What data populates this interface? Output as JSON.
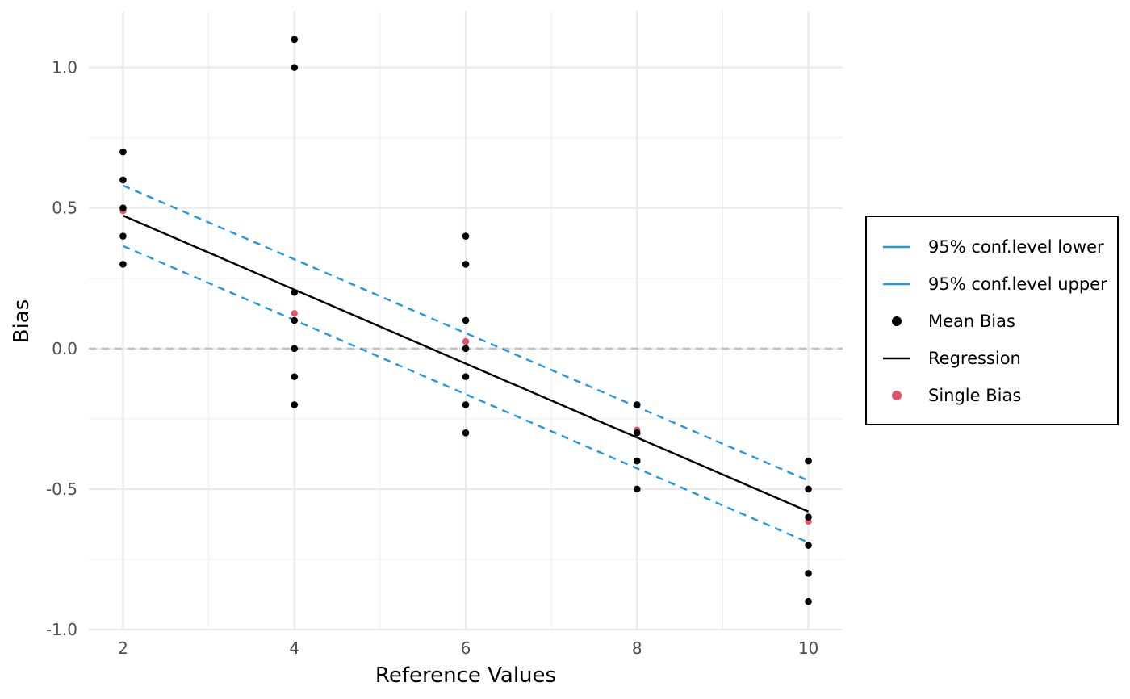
{
  "chart_data": {
    "type": "scatter",
    "title": "",
    "xlabel": "Reference Values",
    "ylabel": "Bias",
    "xlim": [
      1.6,
      10.4
    ],
    "ylim": [
      -1.0,
      1.2
    ],
    "x_ticks": [
      2,
      4,
      6,
      8,
      10
    ],
    "x_tick_labels": [
      "2",
      "4",
      "6",
      "8",
      "10"
    ],
    "y_ticks": [
      -1.0,
      -0.5,
      0.0,
      0.5,
      1.0
    ],
    "y_tick_labels": [
      "-1.0",
      "-0.5",
      "0.0",
      "0.5",
      "1.0"
    ],
    "grid": true,
    "reference_line": {
      "y": 0,
      "style": "dashed",
      "color": "#bebebe"
    },
    "legend_position": "right",
    "series": [
      {
        "name": "95% conf.level lower",
        "kind": "line",
        "style": "dashed",
        "color": "#2297e6",
        "x": [
          2,
          10
        ],
        "y": [
          0.365,
          -0.69
        ]
      },
      {
        "name": "95% conf.level upper",
        "kind": "line",
        "style": "dashed",
        "color": "#2297e6",
        "x": [
          2,
          10
        ],
        "y": [
          0.58,
          -0.47
        ]
      },
      {
        "name": "Mean Bias",
        "kind": "points",
        "color": "#000000",
        "x": [
          2,
          2,
          2,
          2,
          2,
          4,
          4,
          4,
          4,
          4,
          4,
          4,
          6,
          6,
          6,
          6,
          6,
          6,
          6,
          8,
          8,
          8,
          8,
          10,
          10,
          10,
          10,
          10,
          10
        ],
        "y": [
          0.7,
          0.6,
          0.5,
          0.4,
          0.3,
          1.1,
          1.0,
          0.2,
          0.1,
          0.0,
          -0.1,
          -0.2,
          0.4,
          0.3,
          0.1,
          0.0,
          -0.1,
          -0.2,
          -0.3,
          -0.2,
          -0.3,
          -0.4,
          -0.5,
          -0.4,
          -0.5,
          -0.6,
          -0.7,
          -0.8,
          -0.9
        ]
      },
      {
        "name": "Regression",
        "kind": "line",
        "style": "solid",
        "color": "#000000",
        "x": [
          2,
          10
        ],
        "y": [
          0.473,
          -0.58
        ]
      },
      {
        "name": "Single Bias",
        "kind": "points",
        "color": "#df536b",
        "x": [
          2,
          4,
          6,
          8,
          10
        ],
        "y": [
          0.49,
          0.125,
          0.025,
          -0.29,
          -0.615
        ]
      }
    ]
  }
}
